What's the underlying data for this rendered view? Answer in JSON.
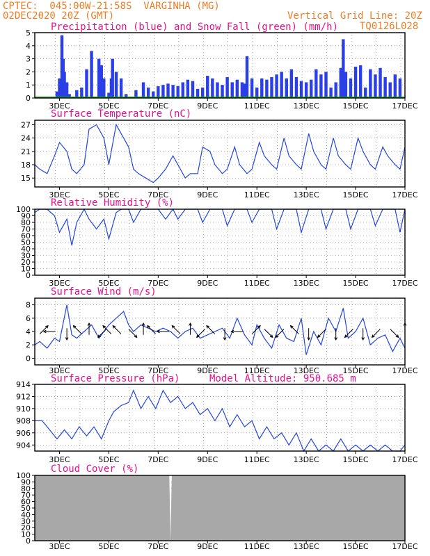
{
  "header": {
    "line1": "CPTEC:  045:00W-21:58S  VARGINHA (MG)",
    "line2": "02DEC2020 20Z (GMT)",
    "grid_note": "Vertical Grid Line: 20Z",
    "code": "TQ0126L028",
    "altitude": "Model Altitude: 950.685 m"
  },
  "colors": {
    "header": "#ee7d24",
    "title": "#e8108a",
    "line": "#2244dd",
    "bar": "#2a3fe6",
    "snow": "#19a319",
    "cloud": "#a8a8a8",
    "arrow": "#000000"
  },
  "x_ticks": [
    "3DEC",
    "5DEC",
    "7DEC",
    "9DEC",
    "11DEC",
    "13DEC",
    "15DEC",
    "17DEC"
  ],
  "chart_data": [
    {
      "id": "precip",
      "type": "bar",
      "title": "Precipitation (blue) and Snow Fall (green) (mm/h)",
      "ylim": [
        0,
        5
      ],
      "yticks": [
        0,
        1,
        2,
        3,
        4,
        5
      ],
      "series": [
        {
          "name": "Precipitation",
          "x": [
            2.9,
            3.0,
            3.1,
            3.15,
            3.2,
            3.3,
            3.4,
            3.7,
            3.9,
            4.1,
            4.3,
            4.6,
            4.7,
            4.8,
            5.0,
            5.1,
            5.15,
            5.3,
            5.5,
            5.7,
            5.9,
            6.1,
            6.4,
            6.6,
            6.8,
            7.0,
            7.2,
            7.4,
            7.6,
            7.8,
            8.0,
            8.2,
            8.4,
            8.6,
            8.8,
            9.0,
            9.2,
            9.4,
            9.6,
            9.8,
            10.0,
            10.2,
            10.4,
            10.5,
            10.6,
            10.8,
            11.0,
            11.2,
            11.4,
            11.6,
            11.8,
            12.0,
            12.2,
            12.4,
            12.6,
            12.8,
            13.0,
            13.2,
            13.4,
            13.6,
            13.8,
            14.0,
            14.2,
            14.4,
            14.5,
            14.6,
            14.8,
            15.0,
            15.2,
            15.4,
            15.6,
            15.8,
            16.0,
            16.2,
            16.4,
            16.6,
            16.8
          ],
          "values": [
            0.5,
            1.5,
            4.8,
            3.0,
            2.0,
            1.2,
            0.3,
            0.6,
            0.8,
            2.2,
            3.6,
            3.0,
            2.5,
            1.5,
            0.4,
            1.5,
            3.0,
            2.0,
            1.5,
            0.3,
            0.1,
            0.6,
            1.2,
            0.8,
            0.5,
            0.9,
            1.0,
            1.1,
            1.0,
            0.9,
            1.2,
            1.4,
            1.3,
            0.7,
            0.8,
            1.7,
            1.5,
            1.2,
            1.0,
            1.6,
            1.2,
            1.4,
            1.2,
            1.1,
            3.2,
            1.5,
            0.8,
            1.5,
            1.4,
            1.6,
            1.8,
            2.0,
            1.5,
            2.2,
            1.6,
            1.3,
            1.2,
            1.4,
            2.2,
            1.8,
            2.0,
            0.8,
            1.2,
            2.3,
            4.5,
            2.0,
            1.5,
            2.4,
            2.5,
            0.8,
            2.2,
            1.8,
            2.3,
            1.6,
            1.2,
            1.8,
            1.5
          ]
        },
        {
          "name": "Snow Fall",
          "x": [
            2.0,
            17.0
          ],
          "values": [
            0,
            0
          ]
        }
      ]
    },
    {
      "id": "temp",
      "type": "line",
      "title": "Surface Temperature (nC)",
      "ylim": [
        13,
        28
      ],
      "yticks": [
        15,
        18,
        21,
        24,
        27
      ],
      "x": [
        2.0,
        2.2,
        2.5,
        2.8,
        3.0,
        3.3,
        3.5,
        3.7,
        4.0,
        4.2,
        4.5,
        4.8,
        5.0,
        5.3,
        5.5,
        5.8,
        6.0,
        6.2,
        6.5,
        6.8,
        7.0,
        7.3,
        7.6,
        7.8,
        8.1,
        8.3,
        8.6,
        8.8,
        9.1,
        9.3,
        9.6,
        9.8,
        10.1,
        10.3,
        10.6,
        10.8,
        11.1,
        11.3,
        11.6,
        11.8,
        12.1,
        12.3,
        12.6,
        12.8,
        13.1,
        13.3,
        13.6,
        13.8,
        14.1,
        14.3,
        14.6,
        14.8,
        15.1,
        15.3,
        15.6,
        15.8,
        16.1,
        16.3,
        16.6,
        16.8,
        17.0
      ],
      "values": [
        18,
        17,
        16,
        20,
        23,
        21,
        17,
        16,
        18,
        26,
        27,
        24,
        18,
        27,
        25,
        22,
        17,
        16,
        15,
        14,
        15,
        17,
        20,
        18,
        15,
        16,
        16,
        22,
        21,
        18,
        16,
        17,
        22,
        18,
        16,
        17,
        23,
        20,
        18,
        17,
        24,
        20,
        18,
        17,
        25,
        21,
        18,
        17,
        24,
        20,
        18,
        17,
        24,
        21,
        18,
        17,
        22,
        20,
        18,
        17,
        22
      ]
    },
    {
      "id": "rh",
      "type": "line",
      "title": "Relative Humidity (%)",
      "ylim": [
        0,
        100
      ],
      "yticks": [
        0,
        10,
        20,
        30,
        40,
        50,
        60,
        70,
        80,
        90,
        100
      ],
      "x": [
        2.0,
        2.2,
        2.5,
        2.8,
        3.0,
        3.3,
        3.5,
        3.7,
        4.0,
        4.2,
        4.5,
        4.8,
        5.0,
        5.3,
        5.5,
        5.8,
        6.0,
        6.3,
        6.5,
        6.8,
        7.0,
        7.3,
        7.6,
        7.8,
        8.1,
        8.3,
        8.6,
        8.8,
        9.1,
        9.3,
        9.6,
        9.8,
        10.1,
        10.3,
        10.6,
        10.8,
        11.1,
        11.3,
        11.6,
        11.8,
        12.1,
        12.3,
        12.6,
        12.8,
        13.1,
        13.3,
        13.6,
        13.8,
        14.1,
        14.3,
        14.6,
        14.8,
        15.1,
        15.3,
        15.6,
        15.8,
        16.1,
        16.3,
        16.6,
        16.8,
        17.0
      ],
      "values": [
        95,
        100,
        100,
        90,
        65,
        85,
        45,
        80,
        100,
        85,
        70,
        85,
        55,
        95,
        100,
        100,
        80,
        100,
        100,
        100,
        100,
        85,
        100,
        85,
        100,
        100,
        100,
        80,
        100,
        100,
        100,
        75,
        100,
        100,
        100,
        80,
        100,
        100,
        100,
        70,
        100,
        100,
        100,
        65,
        100,
        100,
        100,
        70,
        100,
        100,
        100,
        70,
        100,
        100,
        100,
        75,
        100,
        100,
        100,
        65,
        100
      ]
    },
    {
      "id": "wind",
      "type": "line",
      "title": "Surface Wind (m/s)",
      "ylim": [
        -1,
        9
      ],
      "yticks": [
        0,
        2,
        4,
        6,
        8
      ],
      "x": [
        2.0,
        2.2,
        2.5,
        2.8,
        3.0,
        3.3,
        3.5,
        3.7,
        4.0,
        4.3,
        4.6,
        4.8,
        5.0,
        5.3,
        5.6,
        5.8,
        6.0,
        6.3,
        6.6,
        6.9,
        7.2,
        7.5,
        7.8,
        8.1,
        8.4,
        8.7,
        9.0,
        9.3,
        9.6,
        9.9,
        10.2,
        10.5,
        10.8,
        11.0,
        11.3,
        11.6,
        11.9,
        12.2,
        12.5,
        12.8,
        13.0,
        13.3,
        13.6,
        13.9,
        14.2,
        14.5,
        14.7,
        15.0,
        15.3,
        15.6,
        15.9,
        16.2,
        16.5,
        16.8,
        17.0
      ],
      "values": [
        2,
        2.5,
        1.5,
        3,
        2.5,
        8,
        3.5,
        3,
        4,
        5,
        3,
        4,
        5,
        6,
        7,
        5,
        4,
        5,
        4.5,
        4,
        4.5,
        4,
        3,
        4,
        4.5,
        3,
        3.5,
        4,
        4.5,
        3,
        6,
        3.5,
        2,
        5,
        3,
        1.5,
        5,
        3,
        2.5,
        6,
        0.5,
        4,
        2,
        6,
        4,
        7.5,
        3,
        4,
        6,
        2,
        3,
        3.5,
        1,
        3,
        1.5
      ],
      "arrows": [
        {
          "x": 2.3,
          "dir": "ne"
        },
        {
          "x": 2.7,
          "dir": "w"
        },
        {
          "x": 3.3,
          "dir": "s"
        },
        {
          "x": 3.8,
          "dir": "nw"
        },
        {
          "x": 4.2,
          "dir": "n"
        },
        {
          "x": 4.8,
          "dir": "sw"
        },
        {
          "x": 5.0,
          "dir": "nw"
        },
        {
          "x": 5.4,
          "dir": "nw"
        },
        {
          "x": 5.9,
          "dir": "se"
        },
        {
          "x": 6.4,
          "dir": "n"
        },
        {
          "x": 6.8,
          "dir": "nw"
        },
        {
          "x": 7.3,
          "dir": "w"
        },
        {
          "x": 7.8,
          "dir": "nw"
        },
        {
          "x": 8.3,
          "dir": "n"
        },
        {
          "x": 8.8,
          "dir": "sw"
        },
        {
          "x": 9.2,
          "dir": "nw"
        },
        {
          "x": 9.7,
          "dir": "s"
        },
        {
          "x": 10.3,
          "dir": "w"
        },
        {
          "x": 10.9,
          "dir": "ne"
        },
        {
          "x": 11.4,
          "dir": "se"
        },
        {
          "x": 12.0,
          "dir": "sw"
        },
        {
          "x": 12.6,
          "dir": "nw"
        },
        {
          "x": 13.1,
          "dir": "s"
        },
        {
          "x": 13.7,
          "dir": "sw"
        },
        {
          "x": 14.2,
          "dir": "s"
        },
        {
          "x": 14.8,
          "dir": "sw"
        },
        {
          "x": 15.3,
          "dir": "s"
        },
        {
          "x": 15.9,
          "dir": "sw"
        },
        {
          "x": 16.5,
          "dir": "se"
        },
        {
          "x": 17.0,
          "dir": "n"
        }
      ]
    },
    {
      "id": "pres",
      "type": "line",
      "title": "Surface Pressure (hPa)",
      "ylim": [
        903,
        914
      ],
      "yticks": [
        904,
        906,
        908,
        910,
        912,
        914
      ],
      "x": [
        2.0,
        2.3,
        2.6,
        2.9,
        3.2,
        3.5,
        3.8,
        4.1,
        4.4,
        4.7,
        5.0,
        5.2,
        5.5,
        5.8,
        6.0,
        6.3,
        6.6,
        6.9,
        7.2,
        7.5,
        7.8,
        8.1,
        8.4,
        8.7,
        9.0,
        9.3,
        9.6,
        9.9,
        10.2,
        10.5,
        10.8,
        11.1,
        11.4,
        11.7,
        12.0,
        12.3,
        12.6,
        12.9,
        13.2,
        13.5,
        13.8,
        14.1,
        14.4,
        14.7,
        15.0,
        15.3,
        15.6,
        15.9,
        16.2,
        16.5,
        16.8,
        17.0
      ],
      "values": [
        908,
        908,
        906.5,
        905,
        906.5,
        905,
        907,
        905.5,
        907,
        905,
        908,
        909.5,
        910.5,
        911,
        913,
        910,
        912,
        910,
        913,
        911,
        912,
        910,
        911,
        909,
        910,
        908,
        910,
        907,
        909,
        907,
        908,
        905,
        907,
        905,
        906,
        904,
        906,
        903,
        905,
        903,
        904,
        903,
        905,
        903,
        904,
        903,
        904,
        903,
        904,
        903,
        903,
        904
      ]
    },
    {
      "id": "cloud",
      "type": "area",
      "title": "Cloud Cover (%)",
      "ylim": [
        0,
        100
      ],
      "yticks": [
        0,
        10,
        20,
        30,
        40,
        50,
        60,
        70,
        80,
        90,
        100
      ],
      "x": [
        2.0,
        7.45,
        7.5,
        7.55,
        17.0
      ],
      "values": [
        100,
        100,
        0,
        100,
        100
      ]
    }
  ]
}
